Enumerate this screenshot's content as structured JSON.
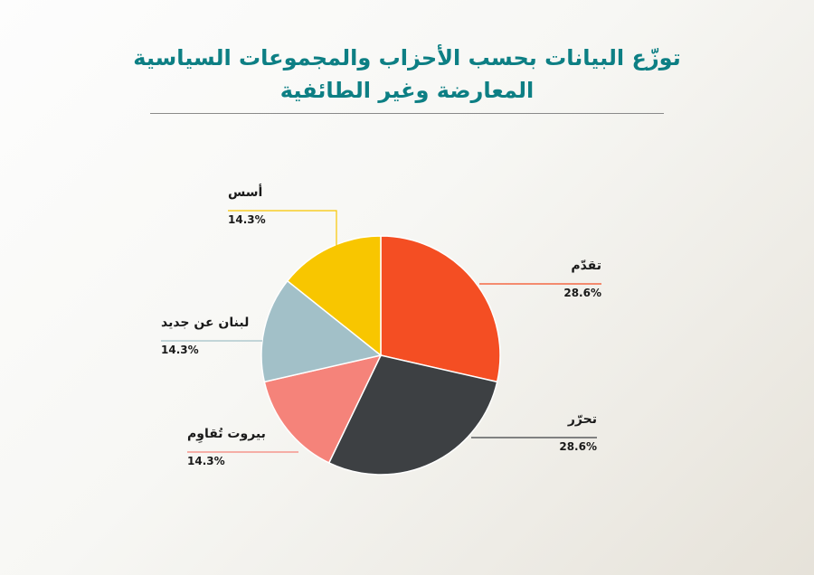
{
  "title": {
    "line1": "توزّع البيانات بحسب الأحزاب والمجموعات السياسية",
    "line2": "المعارضة وغير الطائفية"
  },
  "chart_data": {
    "type": "pie",
    "title": "توزّع البيانات بحسب الأحزاب والمجموعات السياسية المعارضة وغير الطائفية",
    "slices": [
      {
        "label": "تقدّم",
        "value": 28.6,
        "display": "28.6%",
        "color": "#f44e23"
      },
      {
        "label": "تحرّر",
        "value": 28.6,
        "display": "28.6%",
        "color": "#3d4043"
      },
      {
        "label": "بيروت تُقاوِم",
        "value": 14.3,
        "display": "14.3%",
        "color": "#f5837a"
      },
      {
        "label": "لبنان عن جديد",
        "value": 14.3,
        "display": "14.3%",
        "color": "#a2c0c8"
      },
      {
        "label": "أسس",
        "value": 14.3,
        "display": "14.3%",
        "color": "#f8c600"
      }
    ]
  }
}
